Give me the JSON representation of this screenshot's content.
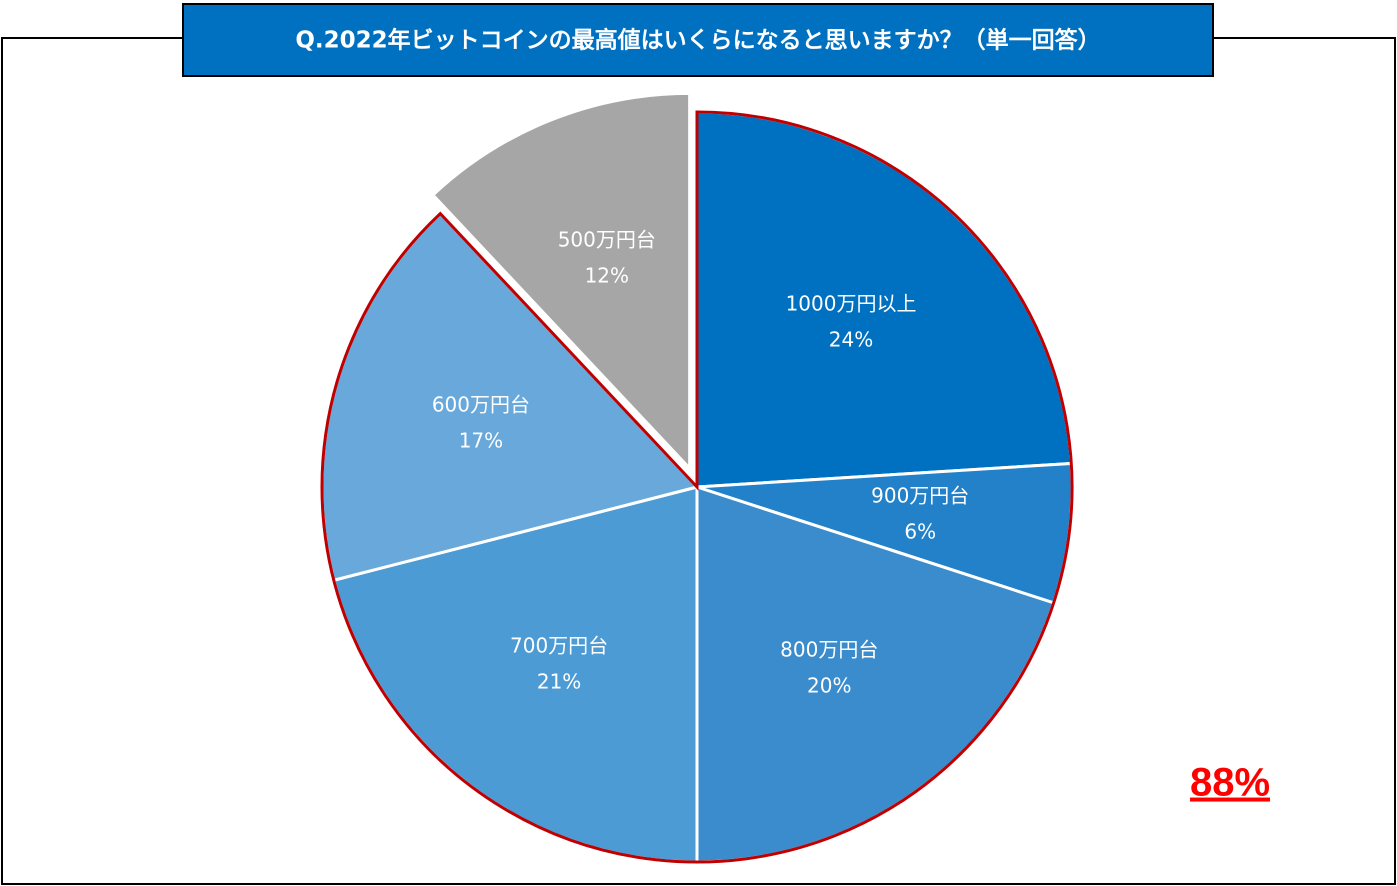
{
  "chart_data": {
    "type": "pie",
    "title": "Q.2022年ビットコインの最高値はいくらになると思いますか？（単一回答）",
    "categories": [
      "1000万円以上",
      "900万円台",
      "800万円台",
      "700万円台",
      "600万円台",
      "500万円台"
    ],
    "values": [
      24,
      6,
      20,
      21,
      17,
      12
    ],
    "value_labels": [
      "24%",
      "6%",
      "20%",
      "21%",
      "17%",
      "12%"
    ],
    "colors": [
      "#0070c0",
      "#2281c8",
      "#3a8ccd",
      "#4d9bd5",
      "#69a8da",
      "#a6a6a6"
    ],
    "explode": [
      false,
      false,
      false,
      false,
      false,
      true
    ],
    "highlight_color": "#c00000",
    "annotation": "88%",
    "annotation_color": "#ff0000"
  }
}
